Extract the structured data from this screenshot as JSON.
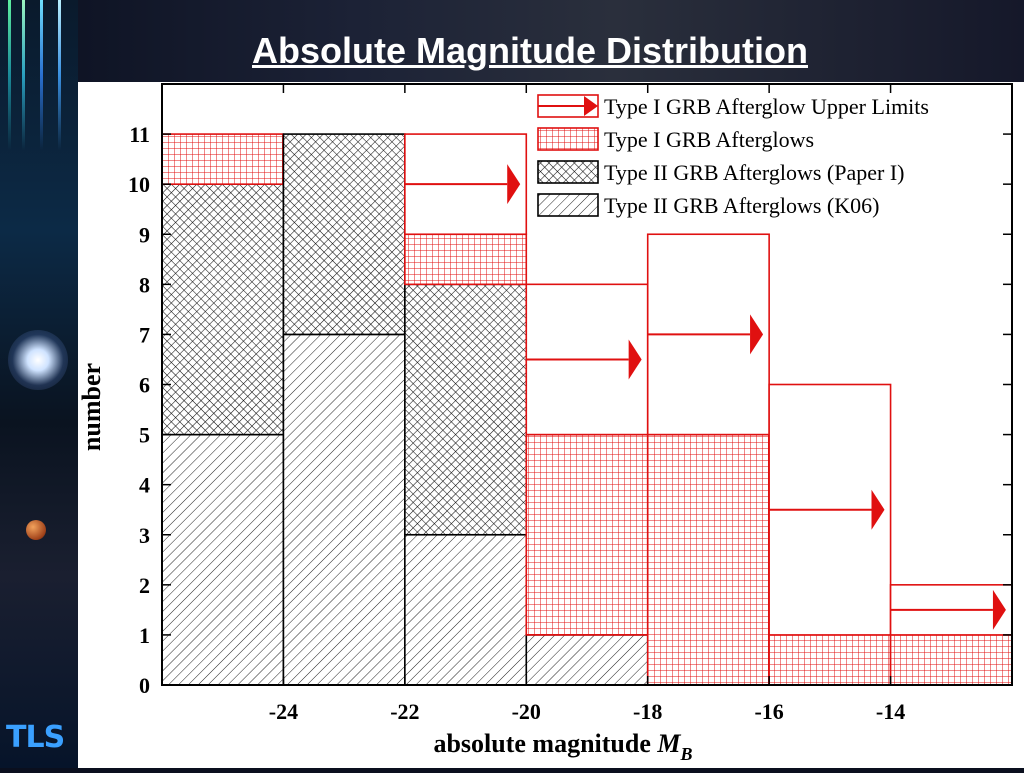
{
  "slide": {
    "title": "Absolute Magnitude Distribution",
    "logo_text": "TLS"
  },
  "colors": {
    "red": "#e01010",
    "black": "#000000"
  },
  "chart_data": {
    "type": "bar",
    "subtype": "stacked-histogram",
    "xlabel": "absolute magnitude M_B",
    "xlabel_text": "absolute magnitude ",
    "xlabel_symbol": "M",
    "xlabel_subscript": "B",
    "ylabel": "number",
    "xlim": [
      -26,
      -12
    ],
    "ylim": [
      0,
      12
    ],
    "xticks": [
      -24,
      -22,
      -20,
      -18,
      -16,
      -14
    ],
    "xtick_labels": [
      "-24",
      "-22",
      "-20",
      "-18",
      "-16",
      "-14"
    ],
    "yticks": [
      0,
      1,
      2,
      3,
      4,
      5,
      6,
      7,
      8,
      9,
      10,
      11
    ],
    "ytick_labels": [
      "0",
      "1",
      "2",
      "3",
      "4",
      "5",
      "6",
      "7",
      "8",
      "9",
      "10",
      "11"
    ],
    "bins": [
      [
        -26,
        -24
      ],
      [
        -24,
        -22
      ],
      [
        -22,
        -20
      ],
      [
        -20,
        -18
      ],
      [
        -18,
        -16
      ],
      [
        -16,
        -14
      ],
      [
        -14,
        -12
      ]
    ],
    "series": [
      {
        "name": "Type II GRB Afterglows (K06)",
        "key": "k06",
        "values": [
          5,
          7,
          3,
          1,
          0,
          0,
          0
        ]
      },
      {
        "name": "Type II GRB Afterglows (Paper I)",
        "key": "paper1",
        "values": [
          5,
          4,
          5,
          0,
          0,
          0,
          0
        ]
      },
      {
        "name": "Type I GRB Afterglows",
        "key": "typeI",
        "values": [
          1,
          0,
          1,
          4,
          5,
          1,
          1
        ]
      },
      {
        "name": "Type I GRB Afterglow Upper Limits",
        "key": "upper",
        "values": [
          0,
          0,
          2,
          3,
          4,
          5,
          1
        ]
      }
    ],
    "legend_order": [
      "upper",
      "typeI",
      "paper1",
      "k06"
    ],
    "legend_position": "top-right",
    "grid": false
  }
}
